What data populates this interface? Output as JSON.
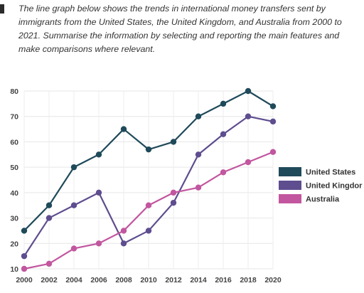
{
  "task": {
    "prompt": "The line graph below shows the trends in international money transfers sent by immigrants from the United States, the United Kingdom, and Australia from 2000 to 2021. Summarise the information by selecting and reporting the main features and make comparisons where relevant."
  },
  "chart_data": {
    "type": "line",
    "title": "",
    "xlabel": "",
    "ylabel": "",
    "x": [
      "2000",
      "2002",
      "2004",
      "2006",
      "2008",
      "2010",
      "2012",
      "2014",
      "2016",
      "2018",
      "2020"
    ],
    "y_ticks": [
      10,
      20,
      30,
      40,
      50,
      60,
      70,
      80
    ],
    "ylim": [
      10,
      80
    ],
    "grid": true,
    "legend_position": "right",
    "series": [
      {
        "name": "United States",
        "color": "#1f4a5a",
        "values": [
          25,
          35,
          50,
          55,
          65,
          57,
          60,
          70,
          75,
          80,
          74
        ]
      },
      {
        "name": "United Kingdor",
        "color": "#5e4d8f",
        "values": [
          15,
          30,
          35,
          40,
          20,
          25,
          36,
          55,
          63,
          70,
          68
        ]
      },
      {
        "name": "Australia",
        "color": "#c2569f",
        "values": [
          10,
          12,
          18,
          20,
          25,
          35,
          40,
          42,
          48,
          52,
          56
        ]
      }
    ]
  }
}
